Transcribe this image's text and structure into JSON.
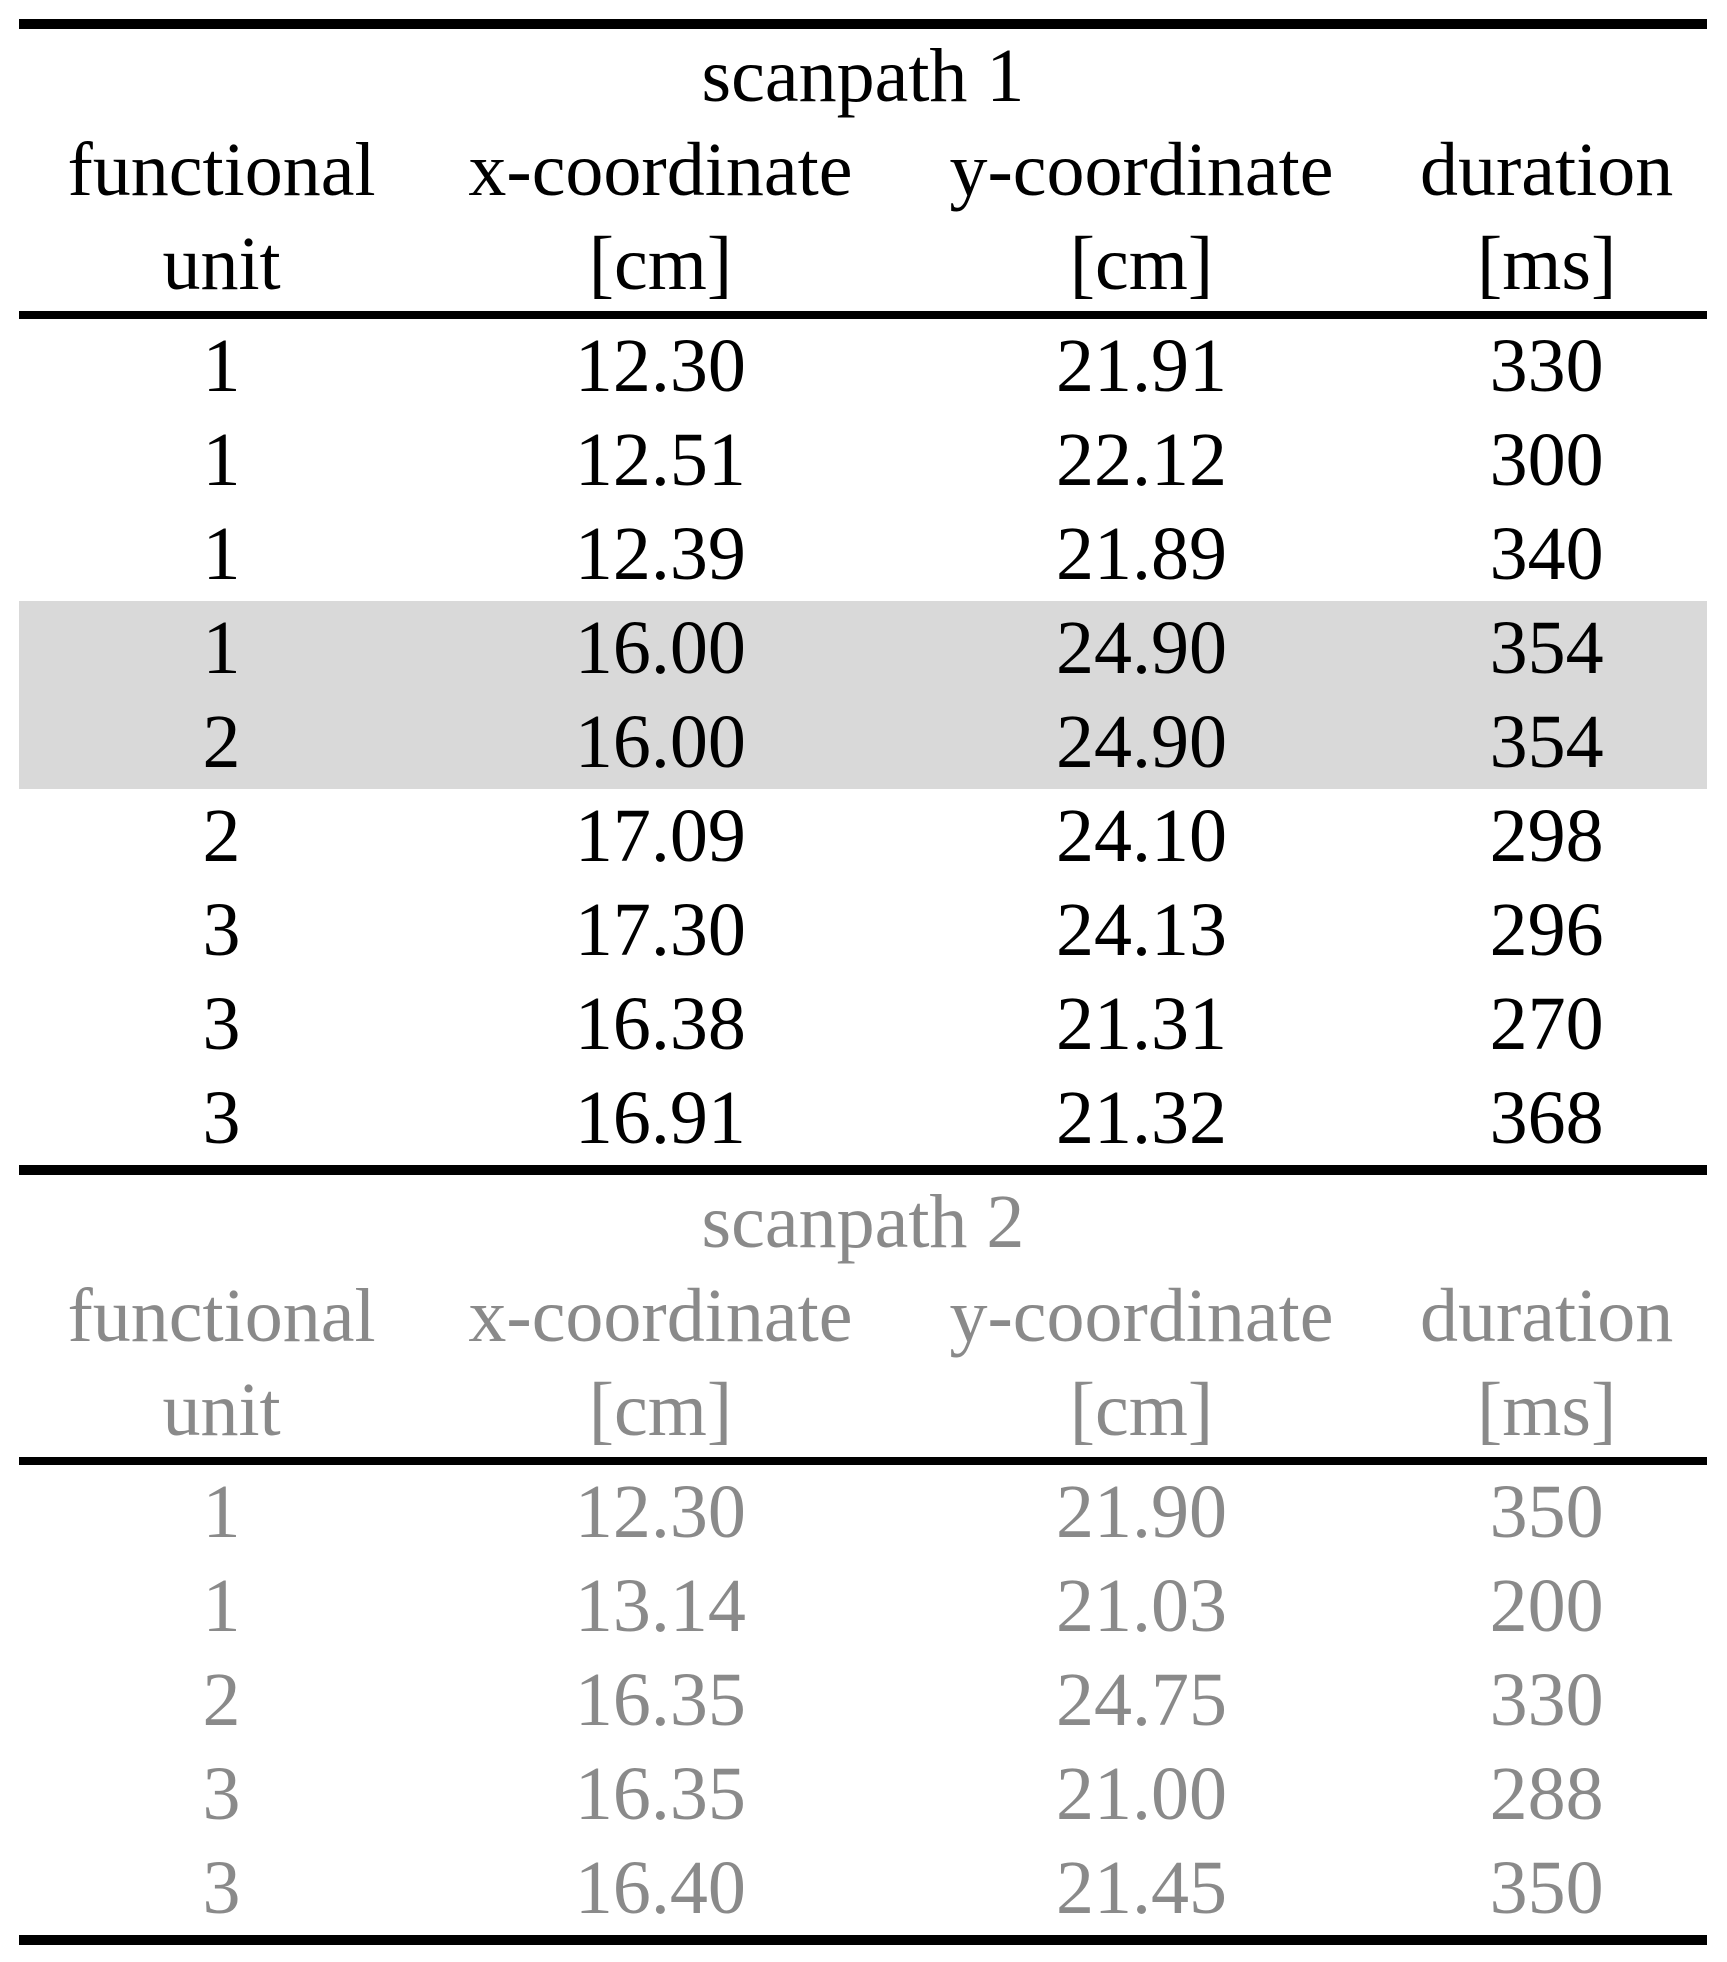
{
  "colors": {
    "highlight_row": "#d9d9d9",
    "secondary_section_text": "#8a8a8a",
    "rule": "#000000",
    "background": "#ffffff"
  },
  "sections": [
    {
      "title": "scanpath 1",
      "header_line1": [
        "functional",
        "x-coordinate",
        "y-coordinate",
        "duration"
      ],
      "header_line2": [
        "unit",
        "[cm]",
        "[cm]",
        "[ms]"
      ],
      "rows": [
        {
          "unit": "1",
          "x": "12.30",
          "y": "21.91",
          "duration": "330",
          "highlighted": false
        },
        {
          "unit": "1",
          "x": "12.51",
          "y": "22.12",
          "duration": "300",
          "highlighted": false
        },
        {
          "unit": "1",
          "x": "12.39",
          "y": "21.89",
          "duration": "340",
          "highlighted": false
        },
        {
          "unit": "1",
          "x": "16.00",
          "y": "24.90",
          "duration": "354",
          "highlighted": true
        },
        {
          "unit": "2",
          "x": "16.00",
          "y": "24.90",
          "duration": "354",
          "highlighted": true
        },
        {
          "unit": "2",
          "x": "17.09",
          "y": "24.10",
          "duration": "298",
          "highlighted": false
        },
        {
          "unit": "3",
          "x": "17.30",
          "y": "24.13",
          "duration": "296",
          "highlighted": false
        },
        {
          "unit": "3",
          "x": "16.38",
          "y": "21.31",
          "duration": "270",
          "highlighted": false
        },
        {
          "unit": "3",
          "x": "16.91",
          "y": "21.32",
          "duration": "368",
          "highlighted": false
        }
      ]
    },
    {
      "title": "scanpath 2",
      "header_line1": [
        "functional",
        "x-coordinate",
        "y-coordinate",
        "duration"
      ],
      "header_line2": [
        "unit",
        "[cm]",
        "[cm]",
        "[ms]"
      ],
      "rows": [
        {
          "unit": "1",
          "x": "12.30",
          "y": "21.90",
          "duration": "350",
          "highlighted": false
        },
        {
          "unit": "1",
          "x": "13.14",
          "y": "21.03",
          "duration": "200",
          "highlighted": false
        },
        {
          "unit": "2",
          "x": "16.35",
          "y": "24.75",
          "duration": "330",
          "highlighted": false
        },
        {
          "unit": "3",
          "x": "16.35",
          "y": "21.00",
          "duration": "288",
          "highlighted": false
        },
        {
          "unit": "3",
          "x": "16.40",
          "y": "21.45",
          "duration": "350",
          "highlighted": false
        }
      ]
    }
  ]
}
